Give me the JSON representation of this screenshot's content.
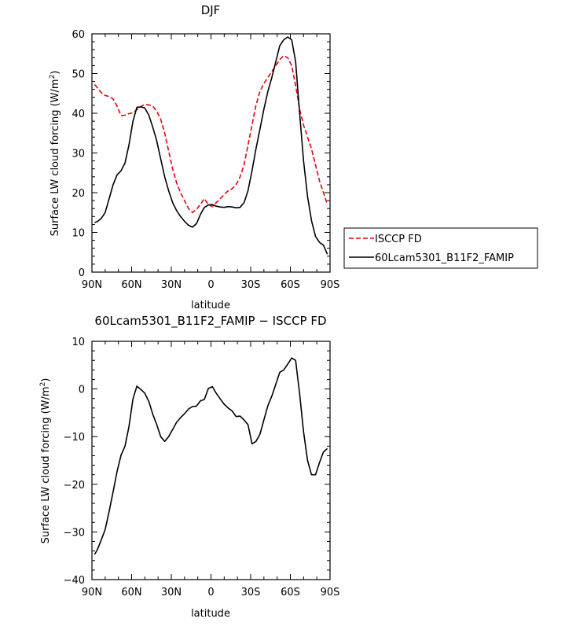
{
  "chart_data": [
    {
      "type": "line",
      "title": "DJF",
      "xlabel": "latitude",
      "ylabel": "Surface LW cloud forcing (W/m²)",
      "ylabel_main": "Surface LW cloud forcing (W/m",
      "ylabel_sup": "2",
      "ylabel_close": ")",
      "xlim": [
        90,
        -90
      ],
      "ylim": [
        0,
        60
      ],
      "x_ticks": [
        90,
        60,
        30,
        0,
        -30,
        -60,
        -90
      ],
      "x_tick_labels": [
        "90N",
        "60N",
        "30N",
        "0",
        "30S",
        "60S",
        "90S"
      ],
      "y_ticks": [
        0,
        10,
        20,
        30,
        40,
        50,
        60
      ],
      "y_tick_labels": [
        "0",
        "10",
        "20",
        "30",
        "40",
        "50",
        "60"
      ],
      "legend_position": "right",
      "series": [
        {
          "name": "ISCCP FD",
          "color": "#e8000b",
          "style": "dashed",
          "x": [
            88,
            86,
            83,
            80,
            77,
            74,
            71,
            68,
            65,
            62,
            59,
            56,
            53,
            50,
            47,
            44,
            41,
            38,
            35,
            32,
            29,
            26,
            23,
            20,
            17,
            14,
            11,
            8,
            5,
            2,
            -1,
            -4,
            -7,
            -10,
            -13,
            -16,
            -19,
            -22,
            -25,
            -28,
            -31,
            -34,
            -37,
            -40,
            -43,
            -46,
            -49,
            -52,
            -55,
            -58,
            -61,
            -64,
            -67,
            -70,
            -73,
            -76,
            -79,
            -82,
            -85,
            -88
          ],
          "y": [
            47.2,
            46.5,
            45.2,
            44.5,
            44.2,
            43.6,
            41.8,
            39.4,
            39.5,
            39.9,
            40.1,
            40.9,
            41.7,
            42.2,
            42.1,
            41.8,
            40.5,
            38.5,
            35.0,
            30.5,
            26.0,
            22.5,
            20.0,
            18.0,
            16.0,
            15.0,
            15.8,
            17.0,
            18.5,
            17.0,
            16.5,
            17.5,
            18.5,
            19.5,
            20.5,
            21.0,
            22.0,
            24.0,
            27.0,
            32.0,
            37.0,
            42.0,
            45.5,
            47.5,
            49.0,
            50.5,
            52.0,
            53.5,
            54.5,
            54.0,
            52.0,
            47.0,
            41.0,
            37.0,
            34.0,
            31.0,
            27.0,
            23.0,
            20.0,
            17.0
          ]
        },
        {
          "name": "60Lcam5301_B11F2_FAMIP",
          "color": "#000000",
          "style": "solid",
          "x": [
            88,
            86,
            83,
            80,
            77,
            74,
            71,
            68,
            65,
            62,
            59,
            56,
            53,
            50,
            47,
            44,
            41,
            38,
            35,
            32,
            29,
            26,
            23,
            20,
            17,
            14,
            11,
            8,
            5,
            2,
            -1,
            -4,
            -7,
            -10,
            -13,
            -16,
            -19,
            -22,
            -25,
            -28,
            -31,
            -34,
            -37,
            -40,
            -43,
            -46,
            -49,
            -52,
            -55,
            -58,
            -61,
            -64,
            -67,
            -70,
            -73,
            -76,
            -79,
            -82,
            -85,
            -88
          ],
          "y": [
            12.5,
            12.7,
            13.5,
            15.0,
            18.5,
            22.0,
            24.5,
            25.5,
            27.5,
            32.0,
            38.0,
            41.5,
            41.6,
            41.3,
            39.5,
            36.5,
            33.0,
            28.5,
            24.0,
            20.5,
            17.5,
            15.5,
            14.0,
            12.8,
            11.8,
            11.3,
            12.2,
            14.5,
            16.3,
            16.9,
            17.0,
            16.6,
            16.4,
            16.3,
            16.5,
            16.4,
            16.2,
            16.3,
            17.5,
            20.5,
            25.5,
            31.0,
            36.0,
            41.0,
            45.5,
            49.0,
            53.0,
            57.0,
            58.5,
            59.2,
            58.5,
            53.0,
            40.0,
            28.0,
            19.0,
            13.0,
            9.0,
            7.5,
            6.8,
            4.5
          ]
        }
      ]
    },
    {
      "type": "line",
      "title": "60Lcam5301_B11F2_FAMIP − ISCCP FD",
      "xlabel": "latitude",
      "ylabel": "Surface LW cloud forcing (W/m²)",
      "ylabel_main": "Surface LW cloud forcing (W/m",
      "ylabel_sup": "2",
      "ylabel_close": ")",
      "xlim": [
        90,
        -90
      ],
      "ylim": [
        -40,
        10
      ],
      "x_ticks": [
        90,
        60,
        30,
        0,
        -30,
        -60,
        -90
      ],
      "x_tick_labels": [
        "90N",
        "60N",
        "30N",
        "0",
        "30S",
        "60S",
        "90S"
      ],
      "y_ticks": [
        -40,
        -30,
        -20,
        -10,
        0,
        10
      ],
      "y_tick_labels": [
        "−40",
        "−30",
        "−20",
        "−10",
        "0",
        "10"
      ],
      "series": [
        {
          "color": "#000000",
          "style": "solid",
          "x": [
            88,
            86,
            83,
            80,
            77,
            74,
            71,
            68,
            65,
            62,
            59,
            56,
            53,
            50,
            47,
            44,
            41,
            38,
            35,
            32,
            29,
            26,
            23,
            20,
            17,
            14,
            11,
            8,
            5,
            2,
            -1,
            -4,
            -7,
            -10,
            -13,
            -16,
            -19,
            -22,
            -25,
            -28,
            -31,
            -34,
            -37,
            -40,
            -43,
            -46,
            -49,
            -52,
            -55,
            -58,
            -61,
            -64,
            -67,
            -70,
            -73,
            -76,
            -79,
            -82,
            -85,
            -88
          ],
          "y": [
            -34.7,
            -33.8,
            -31.7,
            -29.5,
            -25.7,
            -21.6,
            -17.3,
            -13.9,
            -12.0,
            -7.9,
            -2.1,
            0.6,
            -0.1,
            -0.9,
            -2.6,
            -5.3,
            -7.5,
            -10.0,
            -11.0,
            -10.0,
            -8.5,
            -7.0,
            -6.0,
            -5.2,
            -4.2,
            -3.7,
            -3.6,
            -2.5,
            -2.2,
            0.1,
            0.5,
            -0.9,
            -2.1,
            -3.2,
            -4.0,
            -4.6,
            -5.8,
            -5.7,
            -6.5,
            -7.5,
            -11.5,
            -11.0,
            -9.5,
            -6.5,
            -3.5,
            -1.5,
            1.0,
            3.5,
            4.0,
            5.2,
            6.5,
            6.0,
            -1.0,
            -9.0,
            -15.0,
            -18.0,
            -18.0,
            -15.5,
            -13.2,
            -12.5
          ]
        }
      ]
    }
  ]
}
